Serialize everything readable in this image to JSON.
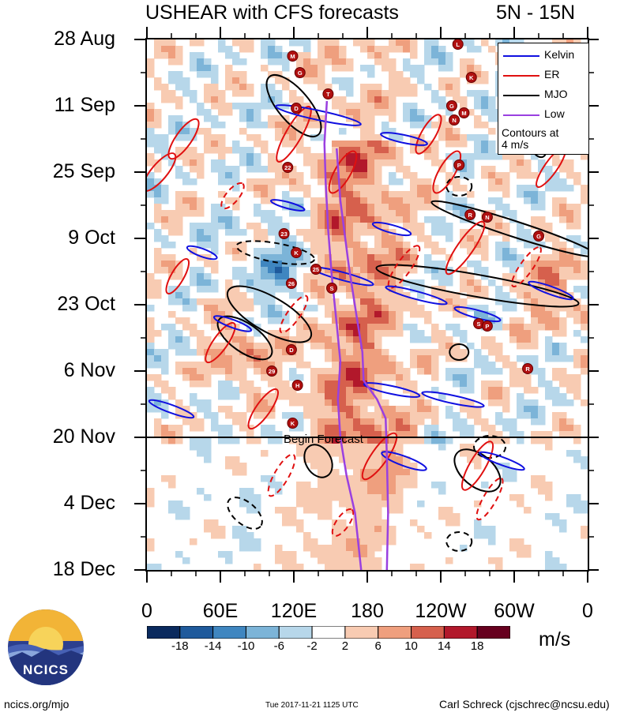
{
  "title": "USHEAR with CFS forecasts",
  "lat_range": "5N - 15N",
  "units": "m/s",
  "begin_forecast_label": "Begin Forecast",
  "legend": {
    "entries": [
      {
        "label": "Kelvin",
        "color": "#1010e0"
      },
      {
        "label": "ER",
        "color": "#e01010"
      },
      {
        "label": "MJO",
        "color": "#000000"
      },
      {
        "label": "Low",
        "color": "#9a40e0"
      }
    ],
    "note_line1": "Contours at",
    "note_line2": "4 m/s"
  },
  "footer": {
    "left": "ncics.org/mjo",
    "middle": "Tue 2017-11-21 1125 UTC",
    "right": "Carl Schreck (cjschrec@ncsu.edu)"
  },
  "logo_text": "NCICS",
  "colorbar": {
    "labels": [
      "-18",
      "-14",
      "-10",
      "-6",
      "-2",
      "2",
      "6",
      "10",
      "14",
      "18"
    ],
    "colors": [
      "#0a2a5e",
      "#1f5a9c",
      "#3f86c0",
      "#7cb4d8",
      "#b7d7ea",
      "#ffffff",
      "#f8cbb2",
      "#ef9f7e",
      "#d6604d",
      "#b2182b",
      "#67001f"
    ]
  },
  "chart_data": {
    "type": "heatmap",
    "title": "USHEAR with CFS forecasts",
    "subtitle": "5N - 15N",
    "xlabel": "",
    "ylabel": "",
    "x_ticks": [
      "0",
      "60E",
      "120E",
      "180",
      "120W",
      "60W",
      "0"
    ],
    "x_tick_values": [
      0,
      60,
      120,
      180,
      240,
      300,
      360
    ],
    "y_ticks": [
      "28 Aug",
      "11 Sep",
      "25 Sep",
      "9 Oct",
      "23 Oct",
      "6 Nov",
      "20 Nov",
      "4 Dec",
      "18 Dec"
    ],
    "y_tick_days": [
      0,
      14,
      28,
      42,
      56,
      70,
      84,
      98,
      112
    ],
    "xlim": [
      0,
      360
    ],
    "ylim_days": [
      0,
      112
    ],
    "forecast_start_day": 84,
    "colorbar_levels": [
      -18,
      -14,
      -10,
      -6,
      -2,
      2,
      6,
      10,
      14,
      18
    ],
    "contour_interval": 4,
    "storm_markers": [
      {
        "label": "L",
        "lon": 254,
        "day": 1
      },
      {
        "label": "M",
        "lon": 119,
        "day": 3.5
      },
      {
        "label": "G",
        "lon": 125,
        "day": 7
      },
      {
        "label": "K",
        "lon": 265,
        "day": 8
      },
      {
        "label": "T",
        "lon": 148,
        "day": 11.5
      },
      {
        "label": "D",
        "lon": 122,
        "day": 14.5
      },
      {
        "label": "G",
        "lon": 249,
        "day": 14
      },
      {
        "label": "N",
        "lon": 251,
        "day": 17
      },
      {
        "label": "M",
        "lon": 259,
        "day": 15.5
      },
      {
        "label": "P",
        "lon": 255,
        "day": 26.5
      },
      {
        "label": "22",
        "lon": 115,
        "day": 27
      },
      {
        "label": "R",
        "lon": 264,
        "day": 37
      },
      {
        "label": "N",
        "lon": 278,
        "day": 37.5
      },
      {
        "label": "G",
        "lon": 320,
        "day": 41.5
      },
      {
        "label": "23",
        "lon": 112,
        "day": 41
      },
      {
        "label": "K",
        "lon": 122,
        "day": 45
      },
      {
        "label": "25",
        "lon": 138,
        "day": 48.5
      },
      {
        "label": "26",
        "lon": 118,
        "day": 51.5
      },
      {
        "label": "S",
        "lon": 151,
        "day": 52.5
      },
      {
        "label": "S",
        "lon": 271,
        "day": 60
      },
      {
        "label": "P",
        "lon": 278,
        "day": 60.5
      },
      {
        "label": "D",
        "lon": 118,
        "day": 65.5
      },
      {
        "label": "29",
        "lon": 102,
        "day": 70
      },
      {
        "label": "R",
        "lon": 311,
        "day": 69.5
      },
      {
        "label": "H",
        "lon": 123,
        "day": 73
      },
      {
        "label": "K",
        "lon": 119,
        "day": 81
      }
    ],
    "series": [
      {
        "name": "Low",
        "points": [
          [
            147,
            13
          ],
          [
            145,
            22
          ],
          [
            146,
            30
          ],
          [
            148,
            40
          ],
          [
            151,
            50
          ],
          [
            155,
            60
          ],
          [
            158,
            68
          ],
          [
            156,
            76
          ],
          [
            158,
            84
          ],
          [
            163,
            92
          ],
          [
            170,
            100
          ],
          [
            175,
            112
          ]
        ]
      },
      {
        "name": "Low",
        "points": [
          [
            155,
            23
          ],
          [
            158,
            34
          ],
          [
            165,
            48
          ],
          [
            171,
            58
          ],
          [
            176,
            66
          ],
          [
            177,
            72
          ],
          [
            188,
            76
          ],
          [
            195,
            80
          ],
          [
            196,
            88
          ],
          [
            197,
            100
          ],
          [
            196,
            112
          ]
        ]
      }
    ]
  }
}
